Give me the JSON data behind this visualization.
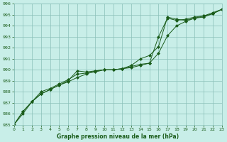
{
  "x": [
    0,
    1,
    2,
    3,
    4,
    5,
    6,
    7,
    8,
    9,
    10,
    11,
    12,
    13,
    14,
    15,
    16,
    17,
    18,
    19,
    20,
    21,
    22,
    23
  ],
  "line1": [
    985.0,
    986.2,
    987.1,
    987.8,
    988.2,
    988.6,
    988.9,
    989.3,
    989.6,
    989.9,
    990.0,
    990.0,
    990.1,
    990.2,
    990.4,
    990.6,
    991.5,
    993.1,
    994.0,
    994.4,
    994.7,
    994.8,
    995.1,
    995.5
  ],
  "line2": [
    985.0,
    986.2,
    987.1,
    987.8,
    988.2,
    988.6,
    989.0,
    989.9,
    989.8,
    989.9,
    990.0,
    990.0,
    990.1,
    990.4,
    991.0,
    991.3,
    992.1,
    994.8,
    994.6,
    994.5,
    994.7,
    994.9,
    995.1,
    995.5
  ],
  "line3": [
    985.0,
    986.0,
    987.1,
    988.0,
    988.3,
    988.7,
    989.1,
    989.6,
    989.7,
    989.8,
    990.0,
    990.0,
    990.1,
    990.3,
    990.5,
    990.6,
    993.0,
    994.7,
    994.5,
    994.6,
    994.8,
    994.9,
    995.2,
    995.5
  ],
  "ylim": [
    985,
    996
  ],
  "xlim": [
    0,
    23
  ],
  "yticks": [
    985,
    986,
    987,
    988,
    989,
    990,
    991,
    992,
    993,
    994,
    995,
    996
  ],
  "xticks": [
    0,
    1,
    2,
    3,
    4,
    5,
    6,
    7,
    8,
    9,
    10,
    11,
    12,
    13,
    14,
    15,
    16,
    17,
    18,
    19,
    20,
    21,
    22,
    23
  ],
  "xlabel": "Graphe pression niveau de la mer (hPa)",
  "line_color": "#1a5c1a",
  "bg_color": "#c8eee8",
  "grid_color": "#8abfb8",
  "tick_color": "#1a5c1a"
}
